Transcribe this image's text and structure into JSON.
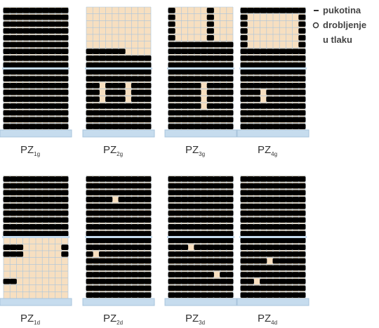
{
  "panels": [
    {
      "label": "PZ",
      "subscript": "1g"
    },
    {
      "label": "PZ",
      "subscript": "2g"
    },
    {
      "label": "PZ",
      "subscript": "3g"
    },
    {
      "label": "PZ",
      "subscript": "4g"
    },
    {
      "label": "PZ",
      "subscript": "1d"
    },
    {
      "label": "PZ",
      "subscript": "2d"
    },
    {
      "label": "PZ",
      "subscript": "3d"
    },
    {
      "label": "PZ",
      "subscript": "4d"
    }
  ],
  "legend": {
    "items": [
      {
        "lines": [
          "pukotina"
        ]
      },
      {
        "lines": [
          "drobljenje",
          "u tlaku"
        ]
      }
    ]
  }
}
